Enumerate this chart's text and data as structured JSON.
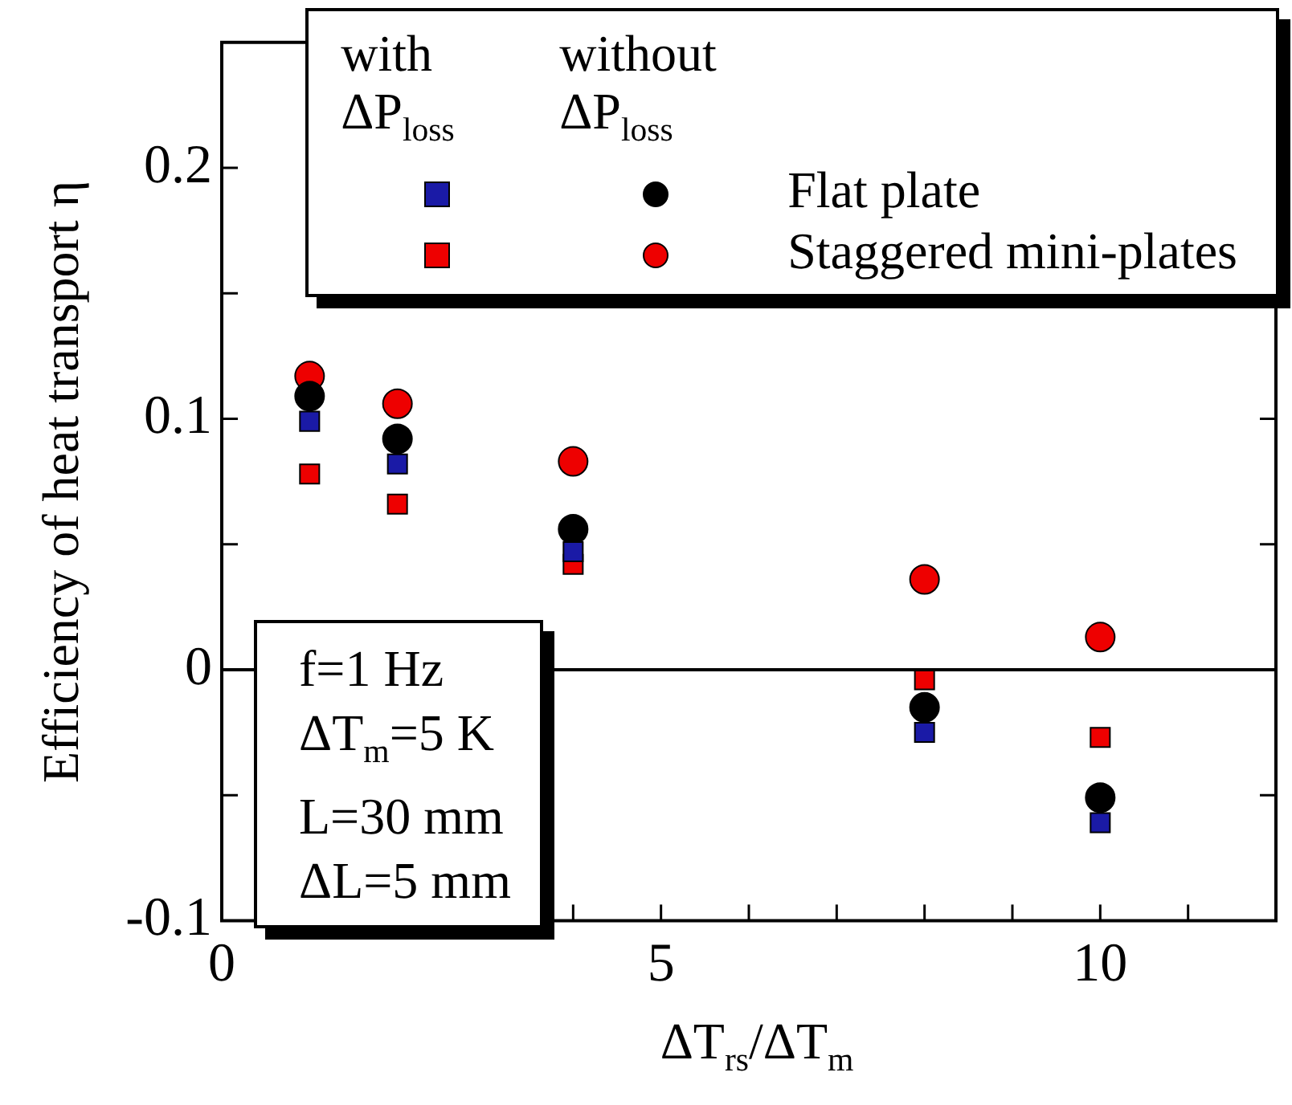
{
  "chart_data": {
    "type": "scatter",
    "xlabel": "ΔT$_{rs}$/ΔT$_{m}$",
    "ylabel": "Efficiency of heat transport η",
    "xlim": [
      0,
      12
    ],
    "xticks": [
      0,
      {
        "value": 1,
        "label": null
      },
      {
        "value": 2,
        "label": null
      },
      {
        "value": 3,
        "label": null
      },
      {
        "value": 4,
        "label": null
      },
      5,
      {
        "value": 6,
        "label": null
      },
      {
        "value": 7,
        "label": null
      },
      {
        "value": 8,
        "label": null
      },
      {
        "value": 9,
        "label": null
      },
      10,
      {
        "value": 11,
        "label": null
      }
    ],
    "ylim": [
      -0.1,
      0.25
    ],
    "yticks": [
      -0.1,
      {
        "value": -0.05,
        "label": null
      },
      0,
      {
        "value": 0.05,
        "label": null
      },
      0.1,
      {
        "value": 0.15,
        "label": null
      },
      0.2
    ],
    "x": [
      1,
      2,
      4,
      8,
      10
    ],
    "series": [
      {
        "color": "#1a1aa6",
        "marker": "square",
        "values": [
          0.099,
          0.082,
          0.047,
          -0.025,
          -0.061
        ]
      },
      {
        "color": "#ee0000",
        "marker": "square",
        "values": [
          0.078,
          0.066,
          0.042,
          -0.004,
          -0.027
        ]
      },
      {
        "name": "Flat plate",
        "color": "#000000",
        "marker": "circle",
        "values": [
          0.109,
          0.092,
          0.056,
          -0.015,
          -0.051
        ]
      },
      {
        "name": "Staggered mini-plates",
        "color": "#ee0000",
        "marker": "circle",
        "values": [
          0.117,
          0.106,
          0.083,
          0.036,
          0.013
        ]
      }
    ],
    "ref_lines": [
      {
        "axis": "y",
        "value": 0,
        "color": "#000000"
      }
    ],
    "legend": "top right",
    "grid": false,
    "annotations": [
      "with ΔP$_{loss}$",
      "without ΔP$_{loss}$",
      "f=1 Hz",
      "ΔT$_{m}$=5 K",
      "L=30 mm",
      "ΔL=5 mm"
    ]
  }
}
